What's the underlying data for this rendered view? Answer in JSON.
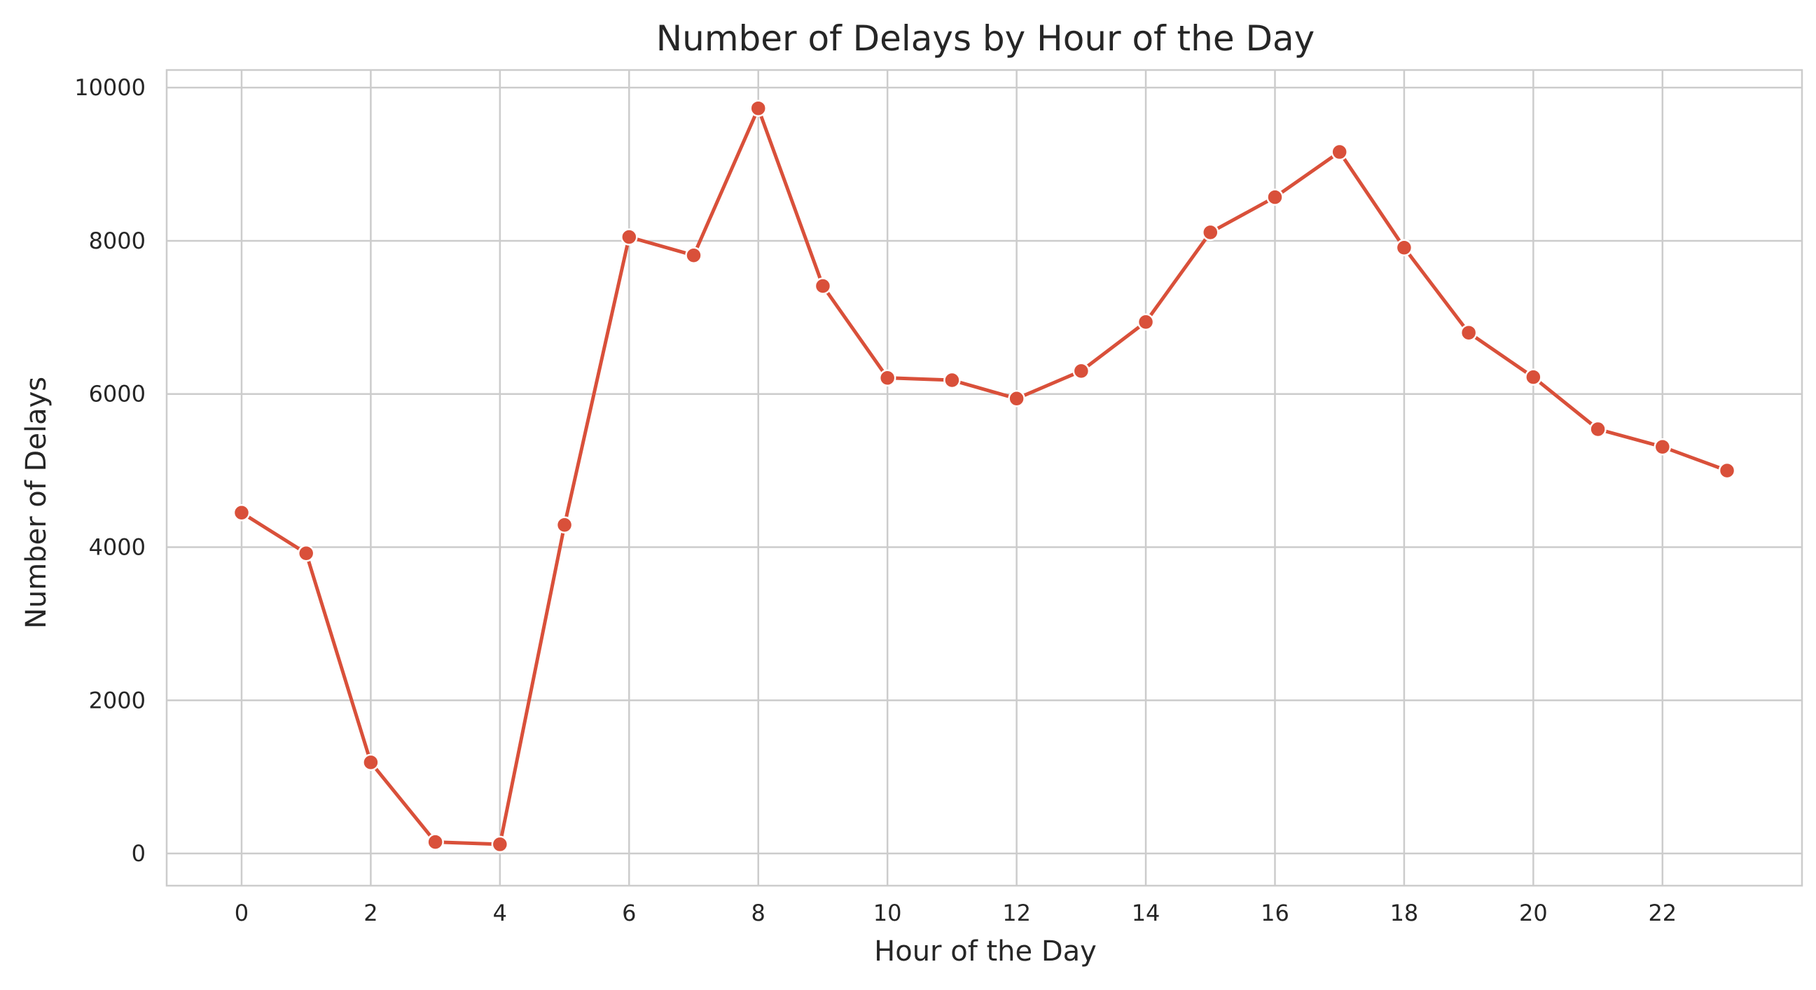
{
  "chart_data": {
    "type": "line",
    "title": "Number of Delays by Hour of the Day",
    "xlabel": "Hour of the Day",
    "ylabel": "Number of Delays",
    "x": [
      0,
      1,
      2,
      3,
      4,
      5,
      6,
      7,
      8,
      9,
      10,
      11,
      12,
      13,
      14,
      15,
      16,
      17,
      18,
      19,
      20,
      21,
      22,
      23
    ],
    "series": [
      {
        "values": [
          4450,
          3920,
          1190,
          150,
          120,
          4290,
          8050,
          7810,
          9730,
          7410,
          6210,
          6180,
          5940,
          6300,
          6940,
          8110,
          8570,
          9160,
          7910,
          6800,
          6220,
          5540,
          5310,
          5000
        ]
      }
    ],
    "xticks": [
      0,
      2,
      4,
      6,
      8,
      10,
      12,
      14,
      16,
      18,
      20,
      22
    ],
    "yticks": [
      0,
      2000,
      4000,
      6000,
      8000,
      10000
    ],
    "xlim": [
      -1.16,
      24.16
    ],
    "ylim": [
      -420,
      10230
    ],
    "grid": true,
    "line_color": "#d9503a",
    "marker": "circle",
    "marker_edge_color": "#ffffff"
  }
}
